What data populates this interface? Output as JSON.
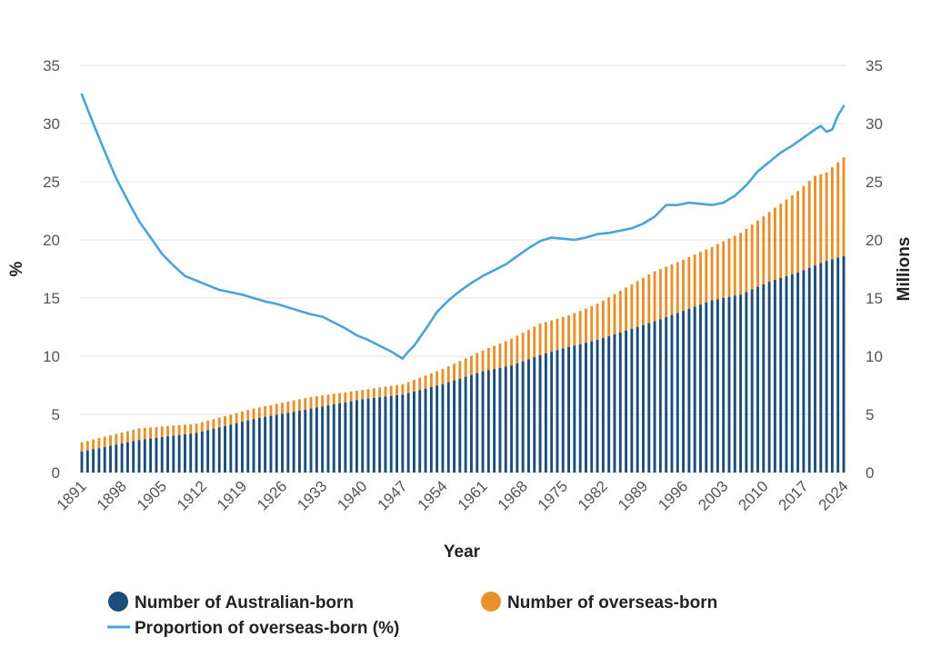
{
  "chart_data": {
    "type": "bar",
    "subtype": "stacked-bar-with-line",
    "title": "",
    "xlabel": "Year",
    "ylabel_left": "%",
    "ylabel_right": "Millions",
    "ylim_left": [
      0,
      35
    ],
    "ylim_right": [
      0,
      35
    ],
    "yticks": [
      0,
      5,
      10,
      15,
      20,
      25,
      30,
      35
    ],
    "x_tick_labels": [
      "1891",
      "1898",
      "1905",
      "1912",
      "1919",
      "1926",
      "1933",
      "1940",
      "1947",
      "1954",
      "1961",
      "1968",
      "1975",
      "1982",
      "1989",
      "1996",
      "2003",
      "2010",
      "2017",
      "2024"
    ],
    "grid": true,
    "legend_position": "bottom",
    "colors": {
      "australian_born": "#1b4d7a",
      "overseas_born": "#e8902a",
      "proportion_line": "#4aa3d9",
      "grid": "#e3e3e3"
    },
    "years": {
      "start": 1891,
      "end": 2024
    },
    "series": [
      {
        "name": "Number of Australian-born",
        "axis": "right",
        "kind": "bar",
        "anchors": [
          [
            1891,
            1.8
          ],
          [
            1901,
            2.8
          ],
          [
            1911,
            3.4
          ],
          [
            1921,
            4.6
          ],
          [
            1931,
            5.5
          ],
          [
            1940,
            6.3
          ],
          [
            1947,
            6.7
          ],
          [
            1954,
            7.6
          ],
          [
            1961,
            8.7
          ],
          [
            1966,
            9.2
          ],
          [
            1971,
            10.1
          ],
          [
            1976,
            10.8
          ],
          [
            1981,
            11.4
          ],
          [
            1986,
            12.2
          ],
          [
            1991,
            13.0
          ],
          [
            1996,
            13.9
          ],
          [
            2001,
            14.8
          ],
          [
            2006,
            15.3
          ],
          [
            2011,
            16.4
          ],
          [
            2016,
            17.2
          ],
          [
            2021,
            18.2
          ],
          [
            2024,
            18.6
          ]
        ]
      },
      {
        "name": "Number of overseas-born",
        "axis": "right",
        "kind": "bar",
        "anchors": [
          [
            1891,
            2.6
          ],
          [
            1901,
            3.8
          ],
          [
            1911,
            4.2
          ],
          [
            1921,
            5.5
          ],
          [
            1931,
            6.5
          ],
          [
            1940,
            7.1
          ],
          [
            1947,
            7.6
          ],
          [
            1954,
            8.9
          ],
          [
            1961,
            10.5
          ],
          [
            1966,
            11.5
          ],
          [
            1971,
            12.8
          ],
          [
            1976,
            13.5
          ],
          [
            1981,
            14.5
          ],
          [
            1986,
            15.9
          ],
          [
            1991,
            17.3
          ],
          [
            1996,
            18.3
          ],
          [
            2001,
            19.4
          ],
          [
            2006,
            20.6
          ],
          [
            2011,
            22.4
          ],
          [
            2016,
            24.2
          ],
          [
            2019,
            25.5
          ],
          [
            2021,
            25.8
          ],
          [
            2024,
            27.1
          ]
        ]
      },
      {
        "name": "Proportion of overseas-born (%)",
        "axis": "left",
        "kind": "line",
        "anchors": [
          [
            1891,
            32.5
          ],
          [
            1893,
            30.0
          ],
          [
            1895,
            27.6
          ],
          [
            1897,
            25.3
          ],
          [
            1899,
            23.4
          ],
          [
            1901,
            21.6
          ],
          [
            1903,
            20.2
          ],
          [
            1905,
            18.8
          ],
          [
            1907,
            17.8
          ],
          [
            1909,
            16.9
          ],
          [
            1911,
            16.5
          ],
          [
            1913,
            16.1
          ],
          [
            1915,
            15.7
          ],
          [
            1917,
            15.5
          ],
          [
            1919,
            15.3
          ],
          [
            1921,
            15.0
          ],
          [
            1923,
            14.7
          ],
          [
            1925,
            14.5
          ],
          [
            1927,
            14.2
          ],
          [
            1929,
            13.9
          ],
          [
            1931,
            13.6
          ],
          [
            1933,
            13.4
          ],
          [
            1935,
            12.9
          ],
          [
            1937,
            12.4
          ],
          [
            1939,
            11.8
          ],
          [
            1941,
            11.4
          ],
          [
            1943,
            10.9
          ],
          [
            1945,
            10.4
          ],
          [
            1947,
            9.8
          ],
          [
            1948,
            10.4
          ],
          [
            1949,
            10.9
          ],
          [
            1951,
            12.3
          ],
          [
            1953,
            13.8
          ],
          [
            1955,
            14.8
          ],
          [
            1957,
            15.6
          ],
          [
            1959,
            16.3
          ],
          [
            1961,
            16.9
          ],
          [
            1963,
            17.4
          ],
          [
            1965,
            17.9
          ],
          [
            1967,
            18.6
          ],
          [
            1969,
            19.3
          ],
          [
            1971,
            19.9
          ],
          [
            1973,
            20.2
          ],
          [
            1975,
            20.1
          ],
          [
            1977,
            20.0
          ],
          [
            1979,
            20.2
          ],
          [
            1981,
            20.5
          ],
          [
            1983,
            20.6
          ],
          [
            1985,
            20.8
          ],
          [
            1987,
            21.0
          ],
          [
            1989,
            21.4
          ],
          [
            1991,
            22.0
          ],
          [
            1993,
            23.0
          ],
          [
            1995,
            23.0
          ],
          [
            1997,
            23.2
          ],
          [
            1999,
            23.1
          ],
          [
            2001,
            23.0
          ],
          [
            2003,
            23.2
          ],
          [
            2005,
            23.8
          ],
          [
            2007,
            24.7
          ],
          [
            2009,
            25.9
          ],
          [
            2011,
            26.7
          ],
          [
            2013,
            27.5
          ],
          [
            2015,
            28.1
          ],
          [
            2017,
            28.8
          ],
          [
            2019,
            29.5
          ],
          [
            2020,
            29.8
          ],
          [
            2021,
            29.3
          ],
          [
            2022,
            29.5
          ],
          [
            2023,
            30.7
          ],
          [
            2024,
            31.5
          ]
        ]
      }
    ]
  }
}
